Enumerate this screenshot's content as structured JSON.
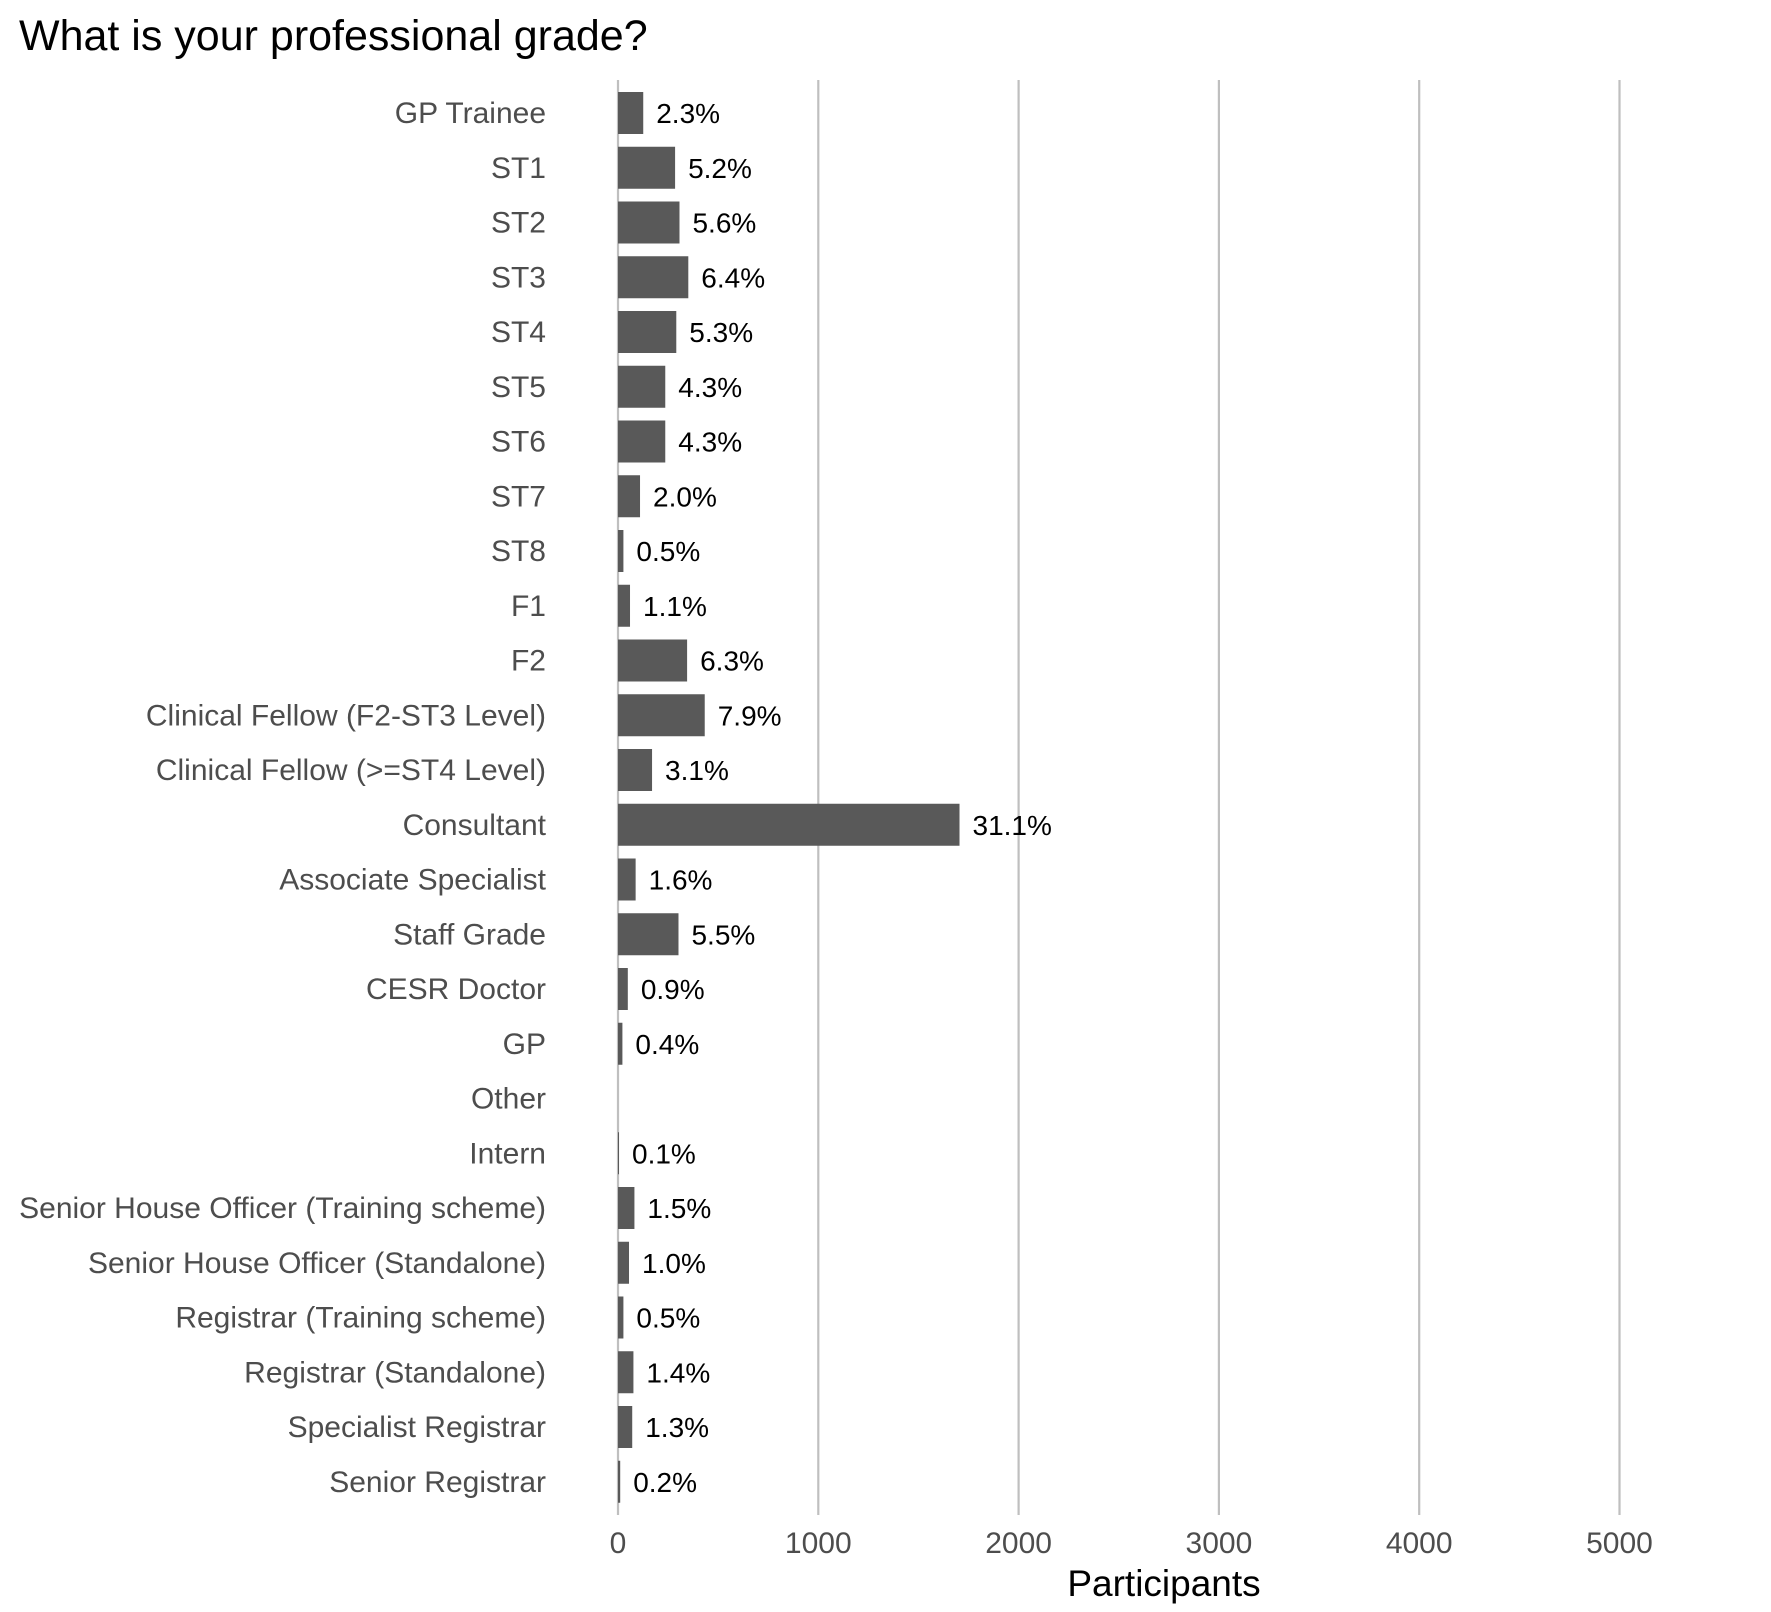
{
  "chart_data": {
    "type": "bar",
    "orientation": "horizontal",
    "title": "What is your professional grade?",
    "xlabel": "Participants",
    "ylabel": "",
    "xlim": [
      0,
      5600
    ],
    "xticks": [
      "0",
      "1000",
      "2000",
      "3000",
      "4000",
      "5000"
    ],
    "grid": "vertical major gridlines",
    "bar_color": "#595959",
    "gridline_color": "#bfbfbf",
    "categories": [
      "GP Trainee",
      "ST1",
      "ST2",
      "ST3",
      "ST4",
      "ST5",
      "ST6",
      "ST7",
      "ST8",
      "F1",
      "F2",
      "Clinical Fellow (F2-ST3 Level)",
      "Clinical Fellow (>=ST4 Level)",
      "Consultant",
      "Associate Specialist",
      "Staff Grade",
      "CESR Doctor",
      "GP",
      "Other",
      "Intern",
      "Senior House Officer (Training scheme)",
      "Senior House Officer (Standalone)",
      "Registrar (Training scheme)",
      "Registrar (Standalone)",
      "Specialist Registrar",
      "Senior Registrar"
    ],
    "values": [
      126,
      285,
      307,
      351,
      291,
      236,
      236,
      110,
      27,
      60,
      345,
      433,
      170,
      1705,
      88,
      302,
      49,
      22,
      0,
      5,
      82,
      55,
      27,
      77,
      71,
      11
    ],
    "labels": [
      "2.3%",
      "5.2%",
      "5.6%",
      "6.4%",
      "5.3%",
      "4.3%",
      "4.3%",
      "2.0%",
      "0.5%",
      "1.1%",
      "6.3%",
      "7.9%",
      "3.1%",
      "31.1%",
      "1.6%",
      "5.5%",
      "0.9%",
      "0.4%",
      "",
      "0.1%",
      "1.5%",
      "1.0%",
      "0.5%",
      "1.4%",
      "1.3%",
      "0.2%"
    ]
  }
}
